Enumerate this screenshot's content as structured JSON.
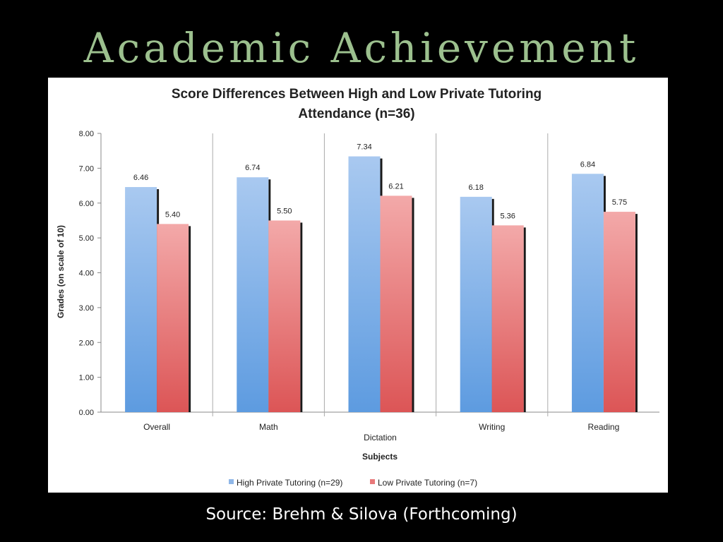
{
  "slide": {
    "title": "Academic Achievement",
    "source": "Source: Brehm & Silova (Forthcoming)"
  },
  "colors": {
    "title": "#9cc08e",
    "high": "#8fb7e8",
    "low": "#e8797a",
    "background": "#000000"
  },
  "chart_data": {
    "type": "bar",
    "title_lines": [
      "Score Differences Between High and Low Private Tutoring",
      "Attendance (n=36)"
    ],
    "xlabel": "Subjects",
    "ylabel": "Grades (on scale of 10)",
    "ylim": [
      0,
      8
    ],
    "yticks": [
      "0.00",
      "1.00",
      "2.00",
      "3.00",
      "4.00",
      "5.00",
      "6.00",
      "7.00",
      "8.00"
    ],
    "categories": [
      "Overall",
      "Math",
      "Dictation",
      "Writing",
      "Reading"
    ],
    "series": [
      {
        "name": "High Private Tutoring (n=29)",
        "values": [
          6.46,
          6.74,
          7.34,
          6.18,
          6.84
        ],
        "labels": [
          "6.46",
          "6.74",
          "7.34",
          "6.18",
          "6.84"
        ]
      },
      {
        "name": "Low Private Tutoring (n=7)",
        "values": [
          5.4,
          5.5,
          6.21,
          5.36,
          5.75
        ],
        "labels": [
          "5.40",
          "5.50",
          "6.21",
          "5.36",
          "5.75"
        ]
      }
    ],
    "legend_position": "bottom",
    "grid": false
  }
}
